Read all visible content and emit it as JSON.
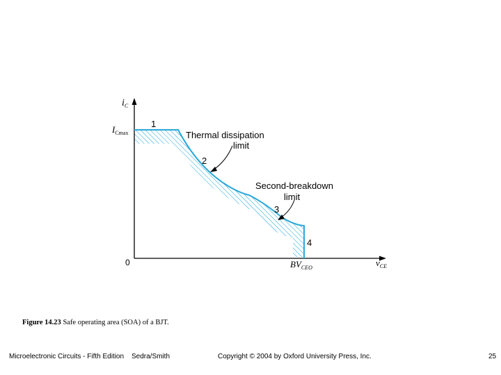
{
  "diagram": {
    "y_axis_label": "i",
    "y_axis_subscript": "C",
    "x_axis_label": "v",
    "x_axis_subscript": "CE",
    "ic_max_label": "I",
    "ic_max_subscript": "Cmax",
    "origin_label": "0",
    "bv_label": "BV",
    "bv_subscript": "CEO",
    "point_labels": [
      "1",
      "2",
      "3",
      "4"
    ],
    "thermal_label_line1": "Thermal dissipation",
    "thermal_label_line2": "limit",
    "breakdown_label_line1": "Second-breakdown",
    "breakdown_label_line2": "limit",
    "colors": {
      "boundary": "#29a8d8",
      "hatch": "#29a8d8",
      "axis": "#000000"
    }
  },
  "caption": {
    "figure_number": "Figure 14.23",
    "text": "Safe operating area (SOA) of a BJT."
  },
  "footer": {
    "book": "Microelectronic Circuits - Fifth Edition",
    "authors": "Sedra/Smith",
    "copyright": "Copyright © 2004 by Oxford University Press, Inc.",
    "page_number": "25"
  }
}
